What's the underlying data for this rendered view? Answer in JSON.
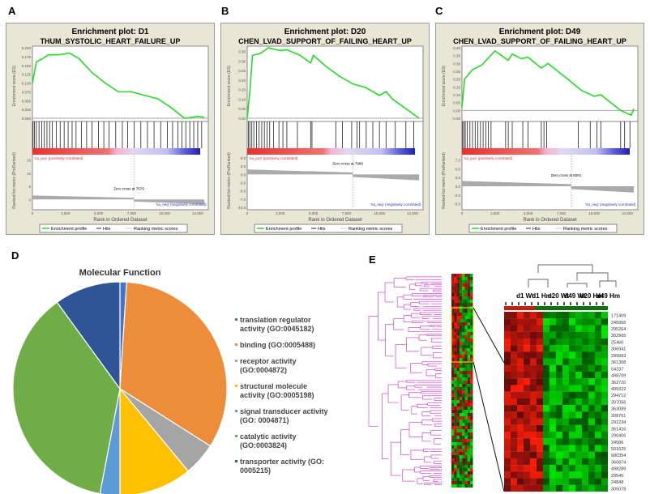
{
  "panels": {
    "A": "A",
    "B": "B",
    "C": "C",
    "D": "D",
    "E": "E"
  },
  "gsea_common": {
    "ylabel_es": "Enrichment score (ES)",
    "ylabel_metric": "Ranked list metric (PreRanked)",
    "xlabel": "Rank in Ordered Dataset",
    "xticks": [
      "0",
      "2,500",
      "5,000",
      "7,500",
      "10,000",
      "12,500"
    ],
    "pos_label": "'na_pos' (positively correlated)",
    "neg_label": "'na_neg' (negatively correlated)",
    "legend": [
      "Enrichment profile",
      "Hits",
      "Ranking metric scores"
    ],
    "colors": {
      "es": "#22dd22",
      "frame": "#e8e6d4"
    }
  },
  "chart_data": [
    {
      "type": "line",
      "title": "Enrichment plot:  D1",
      "subtitle": "THUM_SYSTOLIC_HEART_FAILURE_UP",
      "es_ylim": [
        0,
        0.2
      ],
      "es_ticks": [
        "0.000",
        "0.025",
        "0.050",
        "0.075",
        "0.100",
        "0.125",
        "0.150",
        "0.175",
        "0.200"
      ],
      "metric_ylim": [
        -3,
        17
      ],
      "metric_ticks": [
        "15",
        "10",
        "5",
        "0"
      ],
      "zero_cross": "Zero cross at 7679",
      "zero_rank": 7679,
      "es": [
        [
          0,
          0.1
        ],
        [
          300,
          0.16
        ],
        [
          800,
          0.17
        ],
        [
          1200,
          0.18
        ],
        [
          2000,
          0.18
        ],
        [
          2800,
          0.185
        ],
        [
          3500,
          0.17
        ],
        [
          4500,
          0.13
        ],
        [
          5500,
          0.1
        ],
        [
          6500,
          0.075
        ],
        [
          7500,
          0.075
        ],
        [
          8500,
          0.065
        ],
        [
          9500,
          0.055
        ],
        [
          10500,
          0.03
        ],
        [
          11500,
          0
        ],
        [
          12500,
          0.005
        ],
        [
          13000,
          0.003
        ]
      ],
      "hits": [
        50,
        150,
        300,
        500,
        700,
        900,
        1100,
        1300,
        1500,
        1800,
        2100,
        2400,
        2700,
        3000,
        3300,
        3700,
        4100,
        4500,
        5000,
        5400,
        5800,
        6300,
        6800,
        7200,
        7700,
        8200,
        8700,
        9200,
        9700,
        10200,
        10600,
        11000,
        11300,
        11600,
        11900,
        12200,
        12500,
        12800
      ]
    },
    {
      "type": "line",
      "title": "Enrichment plot:  D20",
      "subtitle": "CHEN_LVAD_SUPPORT_OF_FAILING_HEART_UP",
      "es_ylim": [
        0,
        0.37
      ],
      "es_ticks": [
        "0.00",
        "0.05",
        "0.10",
        "0.15",
        "0.20",
        "0.25",
        "0.30",
        "0.35"
      ],
      "metric_ylim": [
        -10,
        6
      ],
      "metric_ticks": [
        "5.0",
        "2.5",
        "0.0",
        "-2.5",
        "-5.0",
        "-7.5",
        "-10.0"
      ],
      "zero_cross": "Zero cross at 7989",
      "zero_rank": 7989,
      "es": [
        [
          0,
          0
        ],
        [
          200,
          0.14
        ],
        [
          400,
          0.33
        ],
        [
          1000,
          0.34
        ],
        [
          1600,
          0.37
        ],
        [
          2500,
          0.355
        ],
        [
          3000,
          0.36
        ],
        [
          4000,
          0.33
        ],
        [
          4800,
          0.29
        ],
        [
          5000,
          0.33
        ],
        [
          6000,
          0.27
        ],
        [
          7000,
          0.22
        ],
        [
          8000,
          0.18
        ],
        [
          9000,
          0.16
        ],
        [
          10000,
          0.12
        ],
        [
          10500,
          0.14
        ],
        [
          11000,
          0.1
        ],
        [
          12000,
          0.05
        ],
        [
          13000,
          0
        ]
      ],
      "hits": [
        100,
        200,
        350,
        500,
        700,
        900,
        1100,
        1300,
        1500,
        1700,
        2000,
        2400,
        2700,
        3000,
        3800,
        4800,
        4900,
        6700,
        7200,
        7900,
        8300,
        8500,
        9000,
        9500,
        10000,
        10500,
        11200,
        12000,
        12600
      ]
    },
    {
      "type": "line",
      "title": "Enrichment plot: D49",
      "subtitle": "CHEN_LVAD_SUPPORT_OF_FAILING_HEART_UP",
      "es_ylim": [
        -0.05,
        0.4
      ],
      "es_ticks": [
        "-0.05",
        "0.00",
        "0.05",
        "0.10",
        "0.15",
        "0.20",
        "0.25",
        "0.30",
        "0.35",
        "0.40"
      ],
      "metric_ylim": [
        -6,
        9
      ],
      "metric_ticks": [
        "7.5",
        "5.0",
        "2.5",
        "0.0",
        "-2.5",
        "-5.0"
      ],
      "zero_cross": "Zero cross at 8261",
      "zero_rank": 8261,
      "es": [
        [
          0,
          0.02
        ],
        [
          200,
          0.2
        ],
        [
          800,
          0.26
        ],
        [
          1500,
          0.29
        ],
        [
          2500,
          0.38
        ],
        [
          3500,
          0.32
        ],
        [
          3800,
          0.36
        ],
        [
          4500,
          0.33
        ],
        [
          5000,
          0.34
        ],
        [
          6000,
          0.27
        ],
        [
          6500,
          0.3
        ],
        [
          8000,
          0.2
        ],
        [
          9000,
          0.13
        ],
        [
          10000,
          0.09
        ],
        [
          10500,
          0.1
        ],
        [
          12000,
          0
        ],
        [
          12800,
          -0.03
        ],
        [
          13000,
          0.01
        ]
      ],
      "hits": [
        50,
        150,
        250,
        400,
        600,
        800,
        1000,
        1200,
        1400,
        1600,
        1800,
        2000,
        2200,
        3300,
        3500,
        3800,
        4600,
        5000,
        6000,
        6200,
        6400,
        8800,
        9700,
        10200,
        10500,
        12000,
        12300,
        12700
      ]
    },
    {
      "type": "pie",
      "title": "Molecular Function",
      "slices": [
        {
          "label": "translation regulator activity (GO:0045182)",
          "value": 1,
          "color": "#4472c4"
        },
        {
          "label": "binding (GO:0005488)",
          "value": 33,
          "color": "#ed8d3c"
        },
        {
          "label": "receptor activity (GO:0004872)",
          "value": 5,
          "color": "#a5a5a5"
        },
        {
          "label": "structural molecule activity (GO:0005198)",
          "value": 11,
          "color": "#ffc000"
        },
        {
          "label": "signal transducer activity (GO: 0004871)",
          "value": 3,
          "color": "#5b9bd5"
        },
        {
          "label": "catalytic activity (GO:0003824)",
          "value": 37,
          "color": "#70ad47"
        },
        {
          "label": "transporter activity (GO: 0005215)",
          "value": 10,
          "color": "#2f5597"
        }
      ]
    },
    {
      "type": "heatmap",
      "groups": [
        "d1 Wt",
        "d1 Hm",
        "d20 Wt",
        "d49 Wt",
        "d20 Hm",
        "d49 Hm"
      ],
      "rows": [
        "171409",
        "245956",
        "295264",
        "302965",
        "25460",
        "306941",
        "289993",
        "361308",
        "54237",
        "498709",
        "362720",
        "499322",
        "294712",
        "307056",
        "363089",
        "308761",
        "291234",
        "361416",
        "290406",
        "24586",
        "501625",
        "680354",
        "360874",
        "498289",
        "29546",
        "24848",
        "305078"
      ],
      "colors": {
        "high": "#ff2a10",
        "low": "#10dd10",
        "tree": "#d040d0"
      }
    }
  ]
}
